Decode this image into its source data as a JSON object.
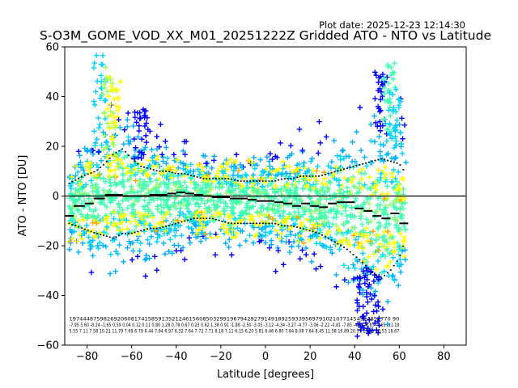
{
  "chart_data": {
    "type": "scatter",
    "plot_date": "Plot date: 2025-12-23 12:14:30",
    "title": "S-O3M_GOME_VOD_XX_M01_20251222Z Gridded ATO - NTO vs Latitude",
    "xlabel": "Latitude [degrees]",
    "ylabel": "ATO - NTO [DU]",
    "xlim": [
      -90,
      90
    ],
    "ylim": [
      -60,
      60
    ],
    "xticks": [
      -80,
      -60,
      -40,
      -20,
      0,
      20,
      40,
      60,
      80
    ],
    "yticks": [
      -60,
      -40,
      -20,
      0,
      20,
      40,
      60
    ],
    "zero_line": 0,
    "marker": "+",
    "colors": {
      "low_density": "#0000ff",
      "mid_low": "#00b0ff",
      "mid": "#00d4ff",
      "dense": "#40ffb0",
      "denser": "#a0ff60",
      "high": "#ffff00",
      "peak": "#ffa500",
      "stats": "#000000"
    },
    "band_x": [
      -88,
      -82,
      -76,
      -72,
      -68,
      -64,
      -60,
      -56,
      -52,
      -48,
      -44,
      -40,
      -36,
      -32,
      -28,
      -24,
      -20,
      -16,
      -12,
      -8,
      -4,
      0,
      4,
      8,
      12,
      16,
      20,
      24,
      28,
      32,
      36,
      40,
      44,
      48,
      52,
      56,
      60,
      63
    ],
    "band_high": [
      8,
      11,
      13,
      16,
      20,
      22,
      18,
      15,
      14,
      13,
      13,
      12,
      12,
      11,
      10,
      10,
      10,
      10,
      9,
      9,
      9,
      9,
      9,
      10,
      10,
      11,
      11,
      11,
      12,
      13,
      14,
      15,
      16,
      17,
      18,
      17,
      16,
      12
    ],
    "band_low": [
      -14,
      -16,
      -18,
      -19,
      -20,
      -18,
      -18,
      -17,
      -16,
      -16,
      -15,
      -14,
      -13,
      -12,
      -12,
      -12,
      -13,
      -14,
      -14,
      -14,
      -14,
      -14,
      -14,
      -15,
      -15,
      -16,
      -17,
      -18,
      -20,
      -22,
      -24,
      -27,
      -30,
      -34,
      -36,
      -33,
      -28,
      -20
    ],
    "dense_center": [
      -3,
      -3,
      -2,
      -1,
      1,
      1,
      0,
      0,
      0,
      0,
      0,
      1,
      1,
      0,
      0,
      -1,
      -1,
      -1,
      -1,
      -1,
      -1,
      -2,
      -2,
      -2,
      -2,
      -3,
      -3,
      -3,
      -4,
      -4,
      -4,
      -5,
      -6,
      -7,
      -8,
      -8,
      -8,
      -9
    ],
    "spikes": [
      {
        "x": -74,
        "lo": 20,
        "hi": 57,
        "color": "mid"
      },
      {
        "x": -70,
        "lo": 18,
        "hi": 52,
        "color": "denser"
      },
      {
        "x": -68,
        "lo": 15,
        "hi": 48,
        "color": "high"
      },
      {
        "x": -56,
        "lo": 15,
        "hi": 35,
        "color": "low_density"
      },
      {
        "x": 44,
        "lo": -58,
        "hi": -30,
        "color": "low_density"
      },
      {
        "x": 48,
        "lo": -57,
        "hi": -28,
        "color": "low_density"
      },
      {
        "x": 52,
        "lo": 25,
        "hi": 50,
        "color": "low_density"
      },
      {
        "x": 56,
        "lo": 25,
        "hi": 54,
        "color": "dense"
      },
      {
        "x": 58,
        "lo": 20,
        "hi": 43,
        "color": "mid"
      }
    ],
    "mean_steps": [
      {
        "x0": -90,
        "x1": -86,
        "y": -8
      },
      {
        "x0": -86,
        "x1": -81,
        "y": -4
      },
      {
        "x0": -81,
        "x1": -77,
        "y": -3
      },
      {
        "x0": -77,
        "x1": -72,
        "y": -1
      },
      {
        "x0": -72,
        "x1": -68,
        "y": 0.5
      },
      {
        "x0": -68,
        "x1": -64,
        "y": 0.5
      },
      {
        "x0": -64,
        "x1": -60,
        "y": 0
      },
      {
        "x0": -60,
        "x1": -56,
        "y": 0
      },
      {
        "x0": -56,
        "x1": -52,
        "y": 0
      },
      {
        "x0": -52,
        "x1": -48,
        "y": 0.5
      },
      {
        "x0": -48,
        "x1": -44,
        "y": 0.5
      },
      {
        "x0": -44,
        "x1": -40,
        "y": 1
      },
      {
        "x0": -40,
        "x1": -36,
        "y": 1.5
      },
      {
        "x0": -36,
        "x1": -32,
        "y": 1
      },
      {
        "x0": -32,
        "x1": -28,
        "y": 0.5
      },
      {
        "x0": -28,
        "x1": -24,
        "y": 0
      },
      {
        "x0": -24,
        "x1": -20,
        "y": -0.5
      },
      {
        "x0": -20,
        "x1": -16,
        "y": -0.5
      },
      {
        "x0": -16,
        "x1": -12,
        "y": -1
      },
      {
        "x0": -12,
        "x1": -8,
        "y": -1
      },
      {
        "x0": -8,
        "x1": -4,
        "y": -1.5
      },
      {
        "x0": -4,
        "x1": 0,
        "y": -2
      },
      {
        "x0": 0,
        "x1": 4,
        "y": -2
      },
      {
        "x0": 4,
        "x1": 8,
        "y": -2.5
      },
      {
        "x0": 8,
        "x1": 12,
        "y": -3
      },
      {
        "x0": 12,
        "x1": 16,
        "y": -4
      },
      {
        "x0": 16,
        "x1": 20,
        "y": -3
      },
      {
        "x0": 20,
        "x1": 24,
        "y": -4
      },
      {
        "x0": 24,
        "x1": 28,
        "y": -4.5
      },
      {
        "x0": 28,
        "x1": 32,
        "y": -3
      },
      {
        "x0": 32,
        "x1": 36,
        "y": -2.5
      },
      {
        "x0": 36,
        "x1": 40,
        "y": -2.5
      },
      {
        "x0": 40,
        "x1": 44,
        "y": -5
      },
      {
        "x0": 44,
        "x1": 48,
        "y": -6
      },
      {
        "x0": 48,
        "x1": 52,
        "y": -8
      },
      {
        "x0": 52,
        "x1": 56,
        "y": -9
      },
      {
        "x0": 56,
        "x1": 60,
        "y": -7
      },
      {
        "x0": 60,
        "x1": 64,
        "y": -11
      }
    ],
    "stats_rows": [
      "1974448759826920608174158591352124615608503299196794292791491892593395697910210771454524852770 90",
      "-7.95 5.60 -8.24 -1.65 0.59 0.04 0.12 0.11 0.80 1.28 0.78 0.67 0.23 0.62 1.38 0.91 -1.88 -2.50 -3.05 -3.12 -4.34 -3.27 -4.77 -3.06 -2.22 -0.81 -7.85 -4.67 -8.83 -7.65 -11.18",
      "5.55 7.11 7.58 10.21 11.79 7.69 6.79 8.44 7.94 6.97 6.32 7.64 7.72 7.71 8.18 7.11 6.15 6.20 5.81 6.46 6.80 7.84 8.08 7.64 8.45 11.58 16.89 20.57 23.10 20.53 18.67"
    ]
  }
}
